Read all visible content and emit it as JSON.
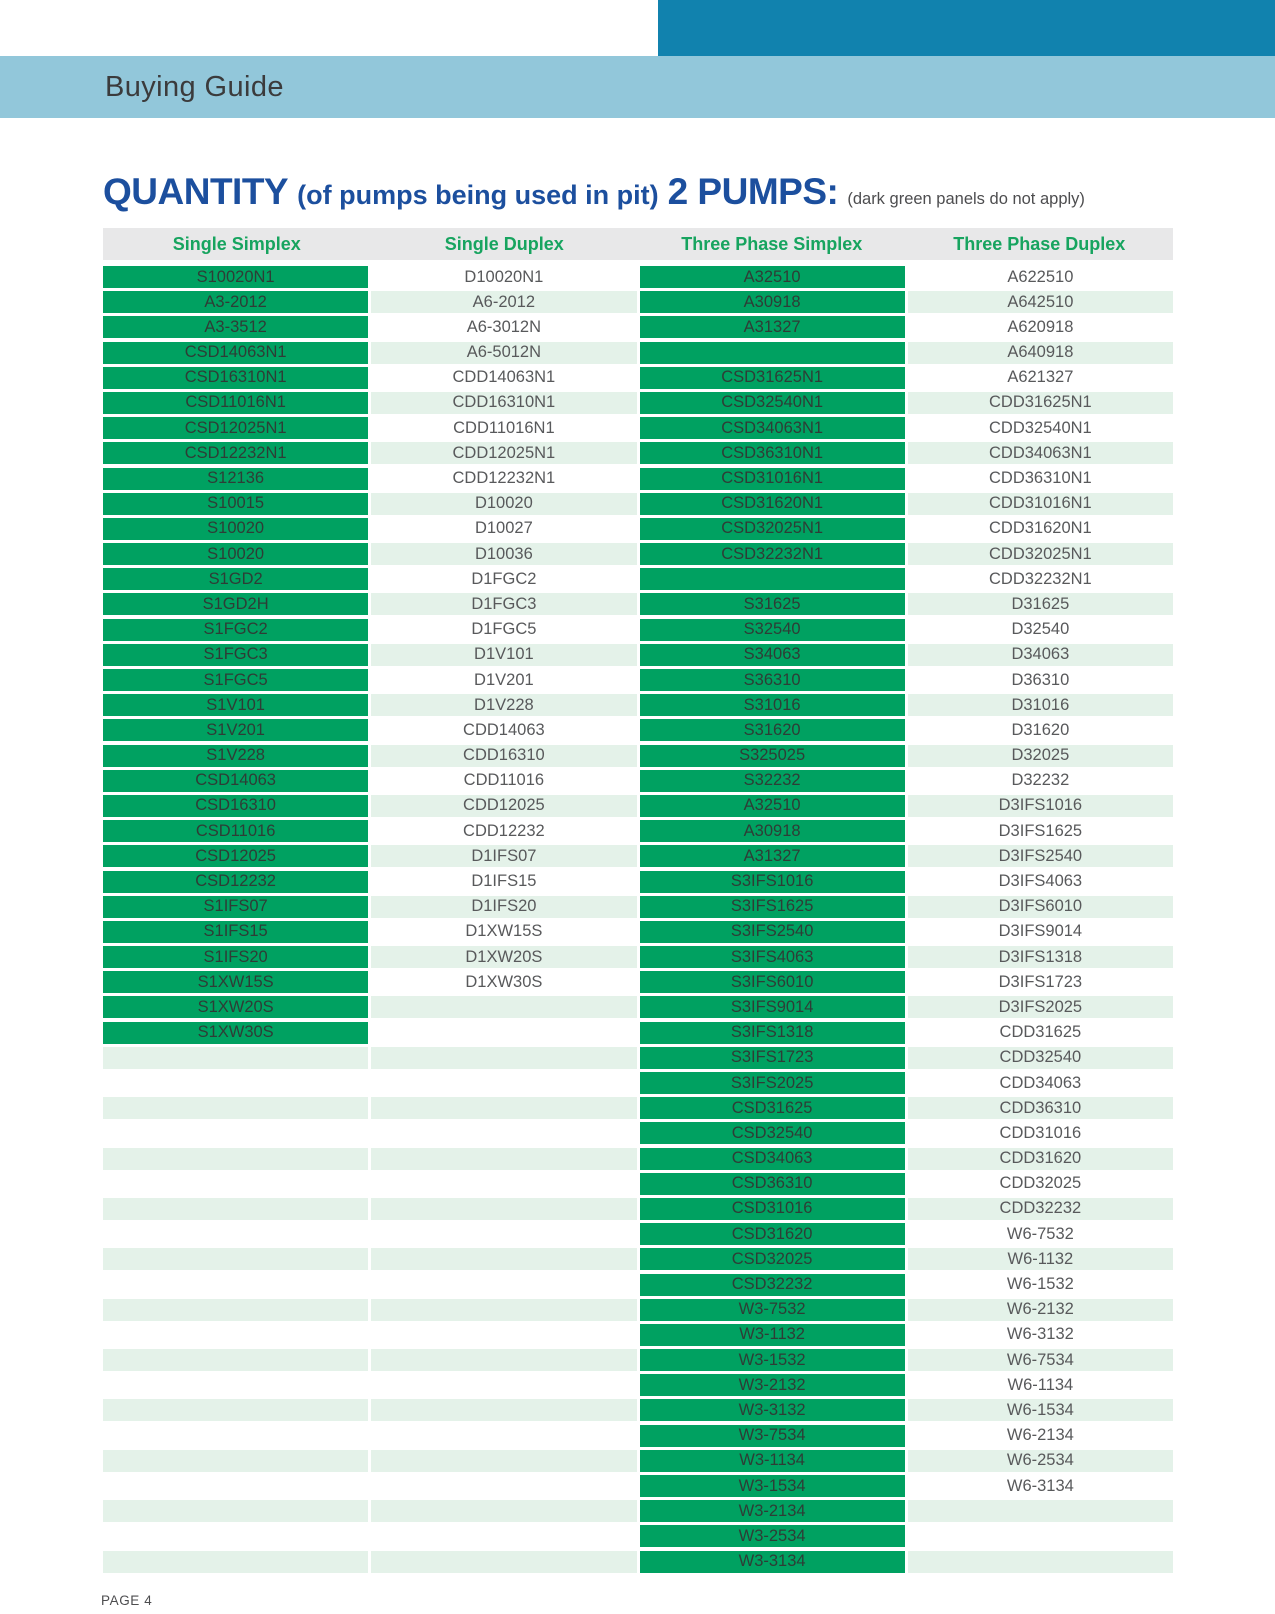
{
  "banner": {
    "title": "Buying Guide"
  },
  "title": {
    "main": "QUANTITY",
    "subtitle": "(of pumps being used in pit)",
    "emphasis": "2 PUMPS:",
    "note": "(dark green panels do not apply)"
  },
  "colors": {
    "accent_dark_blue": "#1182AE",
    "accent_light_blue": "#92C7DA",
    "title_blue": "#1C4F9E",
    "header_text_green": "#17A45F",
    "dark_panel_green": "#00A161",
    "stripe_light_green": "#E4F2E9",
    "cell_text_gray": "#58595B",
    "header_band_gray": "#E8E8E9"
  },
  "table": {
    "row_count": 52,
    "columns": [
      {
        "header": "Single Simplex",
        "panel": true,
        "cells": [
          "S10020N1",
          "A3-2012",
          "A3-3512",
          "CSD14063N1",
          "CSD16310N1",
          "CSD11016N1",
          "CSD12025N1",
          "CSD12232N1",
          "S12136",
          "S10015",
          "S10020",
          "S10020",
          "S1GD2",
          "S1GD2H",
          "S1FGC2",
          "S1FGC3",
          "S1FGC5",
          "S1V101",
          "S1V201",
          "S1V228",
          "CSD14063",
          "CSD16310",
          "CSD11016",
          "CSD12025",
          "CSD12232",
          "S1IFS07",
          "S1IFS15",
          "S1IFS20",
          "S1XW15S",
          "S1XW20S",
          "S1XW30S"
        ]
      },
      {
        "header": "Single Duplex",
        "panel": false,
        "cells": [
          "D10020N1",
          "A6-2012",
          "A6-3012N",
          "A6-5012N",
          "CDD14063N1",
          "CDD16310N1",
          "CDD11016N1",
          "CDD12025N1",
          "CDD12232N1",
          "D10020",
          "D10027",
          "D10036",
          "D1FGC2",
          "D1FGC3",
          "D1FGC5",
          "D1V101",
          "D1V201",
          "D1V228",
          "CDD14063",
          "CDD16310",
          "CDD11016",
          "CDD12025",
          "CDD12232",
          "D1IFS07",
          "D1IFS15",
          "D1IFS20",
          "D1XW15S",
          "D1XW20S",
          "D1XW30S"
        ]
      },
      {
        "header": "Three Phase Simplex",
        "panel": true,
        "cells": [
          "A32510",
          "A30918",
          "A31327",
          "",
          "CSD31625N1",
          "CSD32540N1",
          "CSD34063N1",
          "CSD36310N1",
          "CSD31016N1",
          "CSD31620N1",
          "CSD32025N1",
          "CSD32232N1",
          "",
          "S31625",
          "S32540",
          "S34063",
          "S36310",
          "S31016",
          "S31620",
          "S325025",
          "S32232",
          "A32510",
          "A30918",
          "A31327",
          "S3IFS1016",
          "S3IFS1625",
          "S3IFS2540",
          "S3IFS4063",
          "S3IFS6010",
          "S3IFS9014",
          "S3IFS1318",
          "S3IFS1723",
          "S3IFS2025",
          "CSD31625",
          "CSD32540",
          "CSD34063",
          "CSD36310",
          "CSD31016",
          "CSD31620",
          "CSD32025",
          "CSD32232",
          "W3-7532",
          "W3-1132",
          "W3-1532",
          "W3-2132",
          "W3-3132",
          "W3-7534",
          "W3-1134",
          "W3-1534",
          "W3-2134",
          "W3-2534",
          "W3-3134"
        ]
      },
      {
        "header": "Three Phase Duplex",
        "panel": false,
        "cells": [
          "A622510",
          "A642510",
          "A620918",
          "A640918",
          "A621327",
          "CDD31625N1",
          "CDD32540N1",
          "CDD34063N1",
          "CDD36310N1",
          "CDD31016N1",
          "CDD31620N1",
          "CDD32025N1",
          "CDD32232N1",
          "D31625",
          "D32540",
          "D34063",
          "D36310",
          "D31016",
          "D31620",
          "D32025",
          "D32232",
          "D3IFS1016",
          "D3IFS1625",
          "D3IFS2540",
          "D3IFS4063",
          "D3IFS6010",
          "D3IFS9014",
          "D3IFS1318",
          "D3IFS1723",
          "D3IFS2025",
          "CDD31625",
          "CDD32540",
          "CDD34063",
          "CDD36310",
          "CDD31016",
          "CDD31620",
          "CDD32025",
          "CDD32232",
          "W6-7532",
          "W6-1132",
          "W6-1532",
          "W6-2132",
          "W6-3132",
          "W6-7534",
          "W6-1134",
          "W6-1534",
          "W6-2134",
          "W6-2534",
          "W6-3134"
        ]
      }
    ]
  },
  "footer": {
    "page_label": "PAGE 4"
  }
}
